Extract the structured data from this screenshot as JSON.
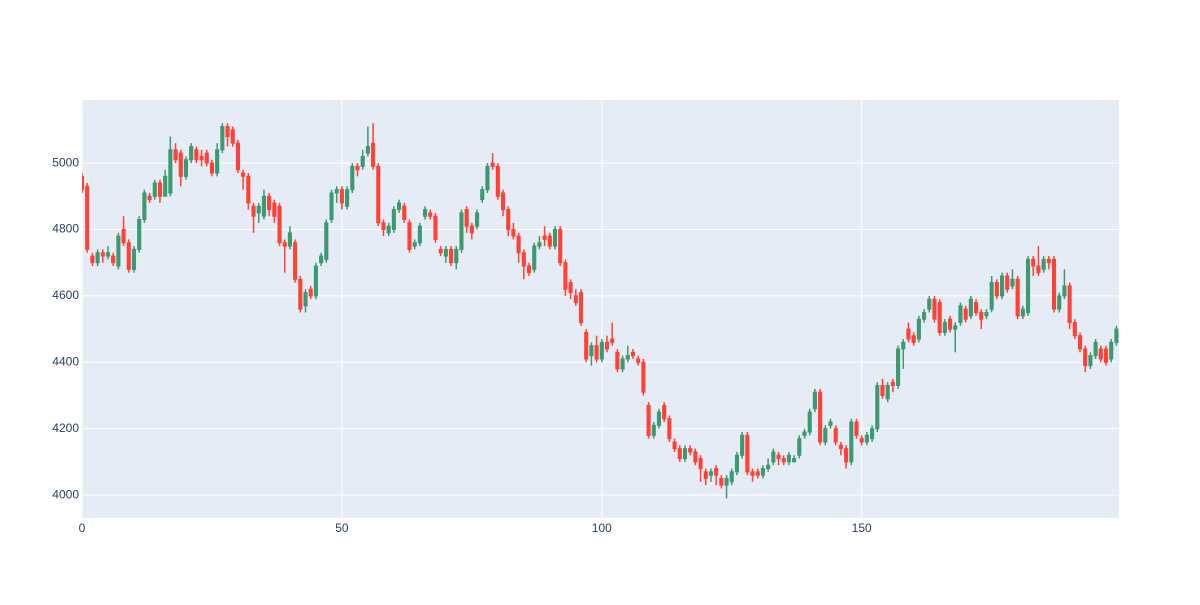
{
  "chart_data": {
    "type": "candlestick",
    "x": [
      0,
      1,
      2,
      3,
      4,
      5,
      6,
      7,
      8,
      9,
      10,
      11,
      12,
      13,
      14,
      15,
      16,
      17,
      18,
      19,
      20,
      21,
      22,
      23,
      24,
      25,
      26,
      27,
      28,
      29,
      30,
      31,
      32,
      33,
      34,
      35,
      36,
      37,
      38,
      39,
      40,
      41,
      42,
      43,
      44,
      45,
      46,
      47,
      48,
      49,
      50,
      51,
      52,
      53,
      54,
      55,
      56,
      57,
      58,
      59,
      60,
      61,
      62,
      63,
      64,
      65,
      66,
      67,
      68,
      69,
      70,
      71,
      72,
      73,
      74,
      75,
      76,
      77,
      78,
      79,
      80,
      81,
      82,
      83,
      84,
      85,
      86,
      87,
      88,
      89,
      90,
      91,
      92,
      93,
      94,
      95,
      96,
      97,
      98,
      99,
      100,
      101,
      102,
      103,
      104,
      105,
      106,
      107,
      108,
      109,
      110,
      111,
      112,
      113,
      114,
      115,
      116,
      117,
      118,
      119,
      120,
      121,
      122,
      123,
      124,
      125,
      126,
      127,
      128,
      129,
      130,
      131,
      132,
      133,
      134,
      135,
      136,
      137,
      138,
      139,
      140,
      141,
      142,
      143,
      144,
      145,
      146,
      147,
      148,
      149,
      150,
      151,
      152,
      153,
      154,
      155,
      156,
      157,
      158,
      159,
      160,
      161,
      162,
      163,
      164,
      165,
      166,
      167,
      168,
      169,
      170,
      171,
      172,
      173,
      174,
      175,
      176,
      177,
      178,
      179,
      180,
      181,
      182,
      183,
      184,
      185,
      186,
      187,
      188,
      189,
      190,
      191,
      192,
      193,
      194,
      195,
      196,
      197,
      198,
      199
    ],
    "open": [
      4960,
      4930,
      4720,
      4700,
      4730,
      4720,
      4720,
      4690,
      4800,
      4760,
      4680,
      4740,
      4830,
      4900,
      4900,
      4940,
      4900,
      4910,
      5040,
      5030,
      4960,
      5010,
      5040,
      5020,
      5030,
      5000,
      4970,
      5040,
      5110,
      5100,
      5060,
      4970,
      4960,
      4870,
      4850,
      4840,
      4900,
      4880,
      4870,
      4760,
      4750,
      4760,
      4650,
      4570,
      4620,
      4600,
      4700,
      4710,
      4830,
      4910,
      4920,
      4870,
      4920,
      4990,
      4990,
      5030,
      5060,
      4990,
      4820,
      4790,
      4800,
      4860,
      4870,
      4820,
      4750,
      4760,
      4840,
      4850,
      4840,
      4740,
      4720,
      4740,
      4700,
      4740,
      4860,
      4810,
      4810,
      4890,
      4920,
      5000,
      4990,
      4910,
      4860,
      4800,
      4780,
      4730,
      4690,
      4680,
      4750,
      4780,
      4780,
      4750,
      4800,
      4700,
      4640,
      4600,
      4610,
      4490,
      4420,
      4450,
      4410,
      4460,
      4470,
      4430,
      4380,
      4410,
      4430,
      4410,
      4400,
      4270,
      4180,
      4210,
      4270,
      4230,
      4160,
      4140,
      4110,
      4140,
      4130,
      4110,
      4070,
      4060,
      4080,
      4050,
      4030,
      4040,
      4070,
      4120,
      4180,
      4070,
      4070,
      4060,
      4080,
      4100,
      4120,
      4110,
      4100,
      4100,
      4120,
      4180,
      4190,
      4260,
      4310,
      4160,
      4210,
      4200,
      4150,
      4140,
      4100,
      4220,
      4170,
      4160,
      4170,
      4200,
      4330,
      4290,
      4340,
      4330,
      4440,
      4500,
      4480,
      4470,
      4530,
      4560,
      4590,
      4580,
      4490,
      4530,
      4500,
      4520,
      4560,
      4540,
      4580,
      4550,
      4540,
      4560,
      4640,
      4600,
      4660,
      4630,
      4650,
      4540,
      4550,
      4710,
      4690,
      4680,
      4710,
      4710,
      4560,
      4600,
      4630,
      4520,
      4480,
      4440,
      4390,
      4420,
      4440,
      4440,
      4410,
      4460
    ],
    "high": [
      4970,
      4940,
      4730,
      4740,
      4740,
      4750,
      4730,
      4790,
      4840,
      4770,
      4750,
      4840,
      4920,
      4910,
      4950,
      4950,
      4980,
      5080,
      5060,
      5040,
      5020,
      5060,
      5050,
      5040,
      5040,
      5010,
      5060,
      5120,
      5120,
      5110,
      5070,
      4980,
      4970,
      4880,
      4880,
      4920,
      4910,
      4890,
      4880,
      4770,
      4810,
      4770,
      4660,
      4620,
      4630,
      4700,
      4730,
      4830,
      4920,
      4930,
      4930,
      4930,
      5000,
      5000,
      5040,
      5110,
      5120,
      5000,
      4830,
      4820,
      4870,
      4890,
      4880,
      4830,
      4770,
      4820,
      4870,
      4860,
      4850,
      4750,
      4750,
      4750,
      4750,
      4860,
      4870,
      4820,
      4860,
      4930,
      5000,
      5030,
      5000,
      4920,
      4870,
      4820,
      4790,
      4740,
      4700,
      4760,
      4780,
      4810,
      4790,
      4810,
      4810,
      4710,
      4650,
      4620,
      4620,
      4500,
      4460,
      4480,
      4470,
      4480,
      4520,
      4440,
      4420,
      4450,
      4440,
      4420,
      4410,
      4280,
      4220,
      4260,
      4280,
      4240,
      4170,
      4150,
      4150,
      4150,
      4140,
      4120,
      4080,
      4080,
      4090,
      4060,
      4060,
      4080,
      4130,
      4190,
      4190,
      4080,
      4080,
      4090,
      4110,
      4140,
      4130,
      4120,
      4130,
      4120,
      4180,
      4200,
      4260,
      4320,
      4320,
      4210,
      4230,
      4210,
      4160,
      4150,
      4230,
      4230,
      4180,
      4190,
      4210,
      4340,
      4350,
      4340,
      4350,
      4450,
      4470,
      4520,
      4490,
      4540,
      4560,
      4600,
      4600,
      4590,
      4530,
      4540,
      4520,
      4580,
      4570,
      4600,
      4590,
      4560,
      4560,
      4660,
      4650,
      4670,
      4670,
      4680,
      4660,
      4570,
      4720,
      4720,
      4750,
      4720,
      4720,
      4720,
      4610,
      4680,
      4640,
      4530,
      4490,
      4450,
      4430,
      4470,
      4450,
      4450,
      4470,
      4510
    ],
    "low": [
      4910,
      4730,
      4690,
      4690,
      4700,
      4710,
      4690,
      4680,
      4750,
      4670,
      4670,
      4730,
      4820,
      4880,
      4890,
      4880,
      4900,
      4900,
      5000,
      4930,
      4950,
      5000,
      5000,
      4990,
      4990,
      4960,
      4960,
      5030,
      5050,
      5050,
      4970,
      4920,
      4860,
      4790,
      4820,
      4830,
      4840,
      4820,
      4750,
      4670,
      4740,
      4640,
      4550,
      4550,
      4590,
      4590,
      4690,
      4700,
      4820,
      4880,
      4860,
      4860,
      4910,
      4960,
      4980,
      5020,
      4980,
      4810,
      4780,
      4780,
      4790,
      4850,
      4820,
      4730,
      4740,
      4750,
      4830,
      4830,
      4760,
      4720,
      4700,
      4690,
      4680,
      4730,
      4790,
      4770,
      4800,
      4880,
      4910,
      4980,
      4890,
      4840,
      4780,
      4770,
      4700,
      4650,
      4660,
      4670,
      4740,
      4750,
      4740,
      4740,
      4690,
      4600,
      4590,
      4570,
      4510,
      4400,
      4390,
      4400,
      4400,
      4430,
      4450,
      4370,
      4370,
      4400,
      4410,
      4390,
      4300,
      4170,
      4170,
      4200,
      4220,
      4160,
      4130,
      4100,
      4100,
      4120,
      4090,
      4040,
      4030,
      4040,
      4030,
      4020,
      3990,
      4030,
      4060,
      4110,
      4060,
      4040,
      4050,
      4050,
      4070,
      4090,
      4090,
      4090,
      4090,
      4100,
      4110,
      4170,
      4180,
      4250,
      4150,
      4150,
      4200,
      4150,
      4120,
      4080,
      4090,
      4170,
      4150,
      4150,
      4160,
      4190,
      4290,
      4280,
      4310,
      4320,
      4380,
      4460,
      4450,
      4460,
      4520,
      4550,
      4520,
      4480,
      4480,
      4490,
      4430,
      4510,
      4520,
      4530,
      4540,
      4500,
      4530,
      4550,
      4590,
      4590,
      4610,
      4620,
      4530,
      4530,
      4540,
      4660,
      4660,
      4670,
      4680,
      4550,
      4550,
      4590,
      4500,
      4470,
      4430,
      4370,
      4380,
      4410,
      4400,
      4390,
      4400,
      4450
    ],
    "close": [
      4920,
      4740,
      4700,
      4730,
      4720,
      4730,
      4700,
      4780,
      4760,
      4680,
      4740,
      4830,
      4910,
      4890,
      4940,
      4900,
      4960,
      5040,
      5010,
      4960,
      5010,
      5050,
      5010,
      5010,
      5000,
      4970,
      5040,
      5110,
      5080,
      5060,
      4980,
      4960,
      4880,
      4840,
      4870,
      4900,
      4860,
      4840,
      4760,
      4750,
      4790,
      4650,
      4560,
      4610,
      4600,
      4690,
      4720,
      4820,
      4910,
      4920,
      4880,
      4920,
      4990,
      4980,
      5020,
      5050,
      4990,
      4820,
      4800,
      4810,
      4860,
      4880,
      4830,
      4740,
      4760,
      4810,
      4860,
      4840,
      4770,
      4730,
      4740,
      4700,
      4740,
      4850,
      4810,
      4790,
      4850,
      4920,
      4990,
      4990,
      4900,
      4860,
      4800,
      4780,
      4730,
      4690,
      4670,
      4750,
      4760,
      4770,
      4750,
      4800,
      4700,
      4620,
      4610,
      4580,
      4520,
      4410,
      4450,
      4410,
      4460,
      4440,
      4460,
      4380,
      4410,
      4420,
      4420,
      4400,
      4310,
      4180,
      4210,
      4250,
      4230,
      4170,
      4140,
      4110,
      4140,
      4130,
      4100,
      4080,
      4050,
      4070,
      4060,
      4030,
      4050,
      4070,
      4120,
      4180,
      4070,
      4060,
      4060,
      4080,
      4090,
      4130,
      4110,
      4100,
      4120,
      4110,
      4170,
      4190,
      4250,
      4310,
      4160,
      4200,
      4220,
      4160,
      4140,
      4100,
      4220,
      4180,
      4160,
      4180,
      4200,
      4330,
      4300,
      4330,
      4330,
      4440,
      4460,
      4470,
      4460,
      4530,
      4550,
      4590,
      4530,
      4490,
      4520,
      4500,
      4510,
      4570,
      4530,
      4590,
      4550,
      4530,
      4550,
      4640,
      4600,
      4660,
      4620,
      4650,
      4540,
      4560,
      4710,
      4690,
      4670,
      4710,
      4700,
      4560,
      4600,
      4630,
      4520,
      4480,
      4440,
      4390,
      4420,
      4460,
      4410,
      4400,
      4460,
      4500
    ],
    "increasing_color": "#3D9970",
    "decreasing_color": "#FF4136",
    "xlim": [
      0,
      199.5
    ],
    "xticks": [
      0,
      50,
      100,
      150
    ],
    "ylim": [
      3931,
      5190
    ],
    "yticks": [
      4000,
      4200,
      4400,
      4600,
      4800,
      5000
    ],
    "grid": true
  }
}
